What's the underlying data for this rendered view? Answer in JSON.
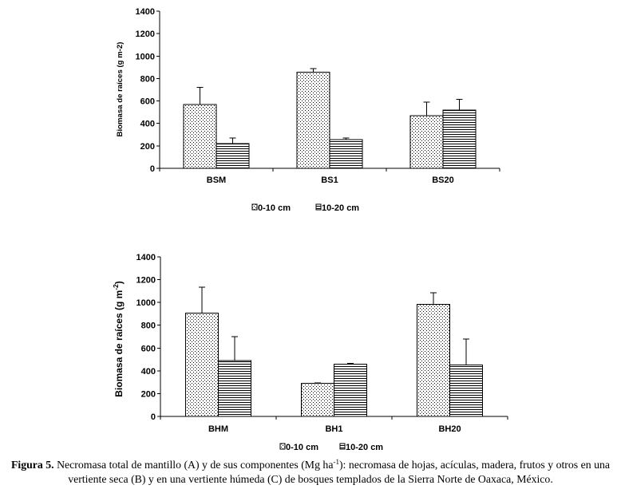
{
  "chart_data": [
    {
      "type": "bar",
      "ylabel_parts": [
        "Biomasa de raíces (g m",
        "-2",
        ")"
      ],
      "ylim": [
        0,
        1400
      ],
      "yticks": [
        0,
        200,
        400,
        600,
        800,
        1000,
        1200,
        1400
      ],
      "categories": [
        "BSM",
        "BS1",
        "BS20"
      ],
      "series": [
        {
          "name": "0-10 cm",
          "values": [
            570,
            855,
            470
          ],
          "errors": [
            150,
            35,
            120
          ]
        },
        {
          "name": "10-20 cm",
          "values": [
            220,
            255,
            520
          ],
          "errors": [
            50,
            15,
            95
          ]
        }
      ],
      "grid": false
    },
    {
      "type": "bar",
      "ylabel_parts": [
        "Biomasa de raíces (g m",
        "-2",
        ")"
      ],
      "ylim": [
        0,
        1400
      ],
      "yticks": [
        0,
        200,
        400,
        600,
        800,
        1000,
        1200,
        1400
      ],
      "categories": [
        "BHM",
        "BH1",
        "BH20"
      ],
      "series": [
        {
          "name": "0-10 cm",
          "values": [
            905,
            290,
            985
          ],
          "errors": [
            230,
            5,
            100
          ]
        },
        {
          "name": "10-20 cm",
          "values": [
            490,
            460,
            450
          ],
          "errors": [
            210,
            5,
            230
          ]
        }
      ],
      "grid": false
    }
  ],
  "caption": {
    "label": "Figura 5.",
    "text_1": "Necromasa total de mantillo (A) y de sus componentes (Mg ha",
    "sup": "-1",
    "text_2": "): necromasa de hojas, acículas, madera, frutos y otros en una",
    "text_3": "vertiente seca (B) y en una vertiente húmeda (C) de bosques templados de la Sierra Norte de Oaxaca, México."
  }
}
